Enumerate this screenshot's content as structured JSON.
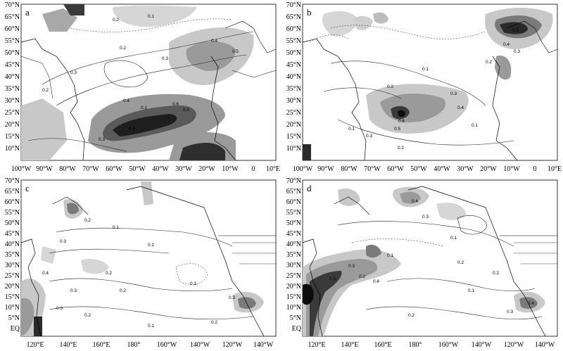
{
  "panels": [
    {
      "id": "a",
      "label": "a",
      "ylabels": [
        "70°N",
        "65°N",
        "60°N",
        "55°N",
        "50°N",
        "45°N",
        "40°N",
        "35°N",
        "30°N",
        "25°N",
        "20°N",
        "15°N",
        "10°N"
      ],
      "xlabels": [
        "100°W",
        "90°W",
        "80°W",
        "70°W",
        "60°W",
        "50°W",
        "40°W",
        "30°W",
        "20°W",
        "10°W",
        "0",
        "10°E"
      ],
      "contour_labels": [
        "0.2",
        "0.3",
        "0.4",
        "0.5",
        "0.1",
        "0.2",
        "0.3",
        "0.4",
        "0.5",
        "0.6",
        "0.6",
        "0.3",
        "0.2",
        "0.1"
      ]
    },
    {
      "id": "b",
      "label": "b",
      "ylabels": [
        "70°N",
        "65°N",
        "60°N",
        "55°N",
        "50°N",
        "45°N",
        "40°N",
        "35°N",
        "30°N",
        "25°N",
        "20°N",
        "15°N",
        "10°N"
      ],
      "xlabels": [
        "100°W",
        "90°W",
        "80°W",
        "70°W",
        "60°W",
        "50°W",
        "40°W",
        "30°W",
        "20°W",
        "10°W",
        "0",
        "10°E"
      ],
      "contour_labels": [
        "0.1",
        "0.2",
        "0.3",
        "0.4",
        "0.5",
        "0.6",
        "0.3",
        "0.2",
        "0.1",
        "0.2",
        "0.3",
        "0.4",
        "0.5",
        "0.1"
      ]
    },
    {
      "id": "c",
      "label": "c",
      "ylabels": [
        "70°N",
        "65°N",
        "60°N",
        "55°N",
        "50°N",
        "45°N",
        "40°N",
        "35°N",
        "30°N",
        "25°N",
        "20°N",
        "15°N",
        "10°N",
        "5°N",
        "EQ"
      ],
      "xlabels": [
        "120°E",
        "140°E",
        "160°E",
        "180°",
        "160°W",
        "140°W",
        "120°W",
        "140°W"
      ],
      "contour_labels": [
        "0.1",
        "0.2",
        "0.3",
        "0.1",
        "0.2",
        "0.3",
        "0.2",
        "0.1",
        "0.2",
        "0.3",
        "0.4",
        "0.1",
        "0.2",
        "0.3"
      ]
    },
    {
      "id": "d",
      "label": "d",
      "ylabels": [
        "70°N",
        "65°N",
        "60°N",
        "55°N",
        "50°N",
        "45°N",
        "40°N",
        "35°N",
        "30°N",
        "25°N",
        "20°N",
        "15°N",
        "10°N",
        "5°N",
        "EQ"
      ],
      "xlabels": [
        "120°E",
        "140°E",
        "160°E",
        "180°",
        "160°W",
        "140°W",
        "120°W",
        "140°W"
      ],
      "contour_labels": [
        "0.1",
        "0.2",
        "0.3",
        "0.4",
        "0.5",
        "0.4",
        "0.3",
        "0.2",
        "0.1",
        "0.2",
        "0.3",
        "0.4",
        "0.1",
        "0.2"
      ]
    }
  ]
}
